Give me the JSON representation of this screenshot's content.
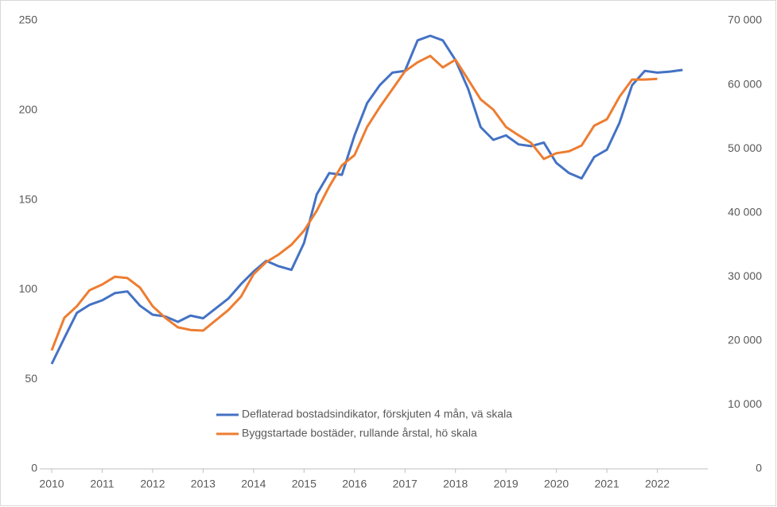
{
  "chart_data": {
    "type": "line",
    "x": [
      2010,
      2010.25,
      2010.5,
      2010.75,
      2011,
      2011.25,
      2011.5,
      2011.75,
      2012,
      2012.25,
      2012.5,
      2012.75,
      2013,
      2013.25,
      2013.5,
      2013.75,
      2014,
      2014.25,
      2014.5,
      2014.75,
      2015,
      2015.25,
      2015.5,
      2015.75,
      2016,
      2016.25,
      2016.5,
      2016.75,
      2017,
      2017.25,
      2017.5,
      2017.75,
      2018,
      2018.25,
      2018.5,
      2018.75,
      2019,
      2019.25,
      2019.5,
      2019.75,
      2020,
      2020.25,
      2020.5,
      2020.75,
      2021,
      2021.25,
      2021.5,
      2021.75,
      2022,
      2022.25,
      2022.5
    ],
    "xlim": [
      2010,
      2023
    ],
    "xticks": [
      2010,
      2011,
      2012,
      2013,
      2014,
      2015,
      2016,
      2017,
      2018,
      2019,
      2020,
      2021,
      2022
    ],
    "ylim": [
      0,
      250
    ],
    "yticks": [
      0,
      50,
      100,
      150,
      200,
      250
    ],
    "y2lim": [
      0,
      70000
    ],
    "y2ticks": [
      {
        "value": 0,
        "label": "0"
      },
      {
        "value": 10000,
        "label": "10 000"
      },
      {
        "value": 20000,
        "label": "20 000"
      },
      {
        "value": 30000,
        "label": "30 000"
      },
      {
        "value": 40000,
        "label": "40 000"
      },
      {
        "value": 50000,
        "label": "50 000"
      },
      {
        "value": 60000,
        "label": "60 000"
      },
      {
        "value": 70000,
        "label": "70 000"
      }
    ],
    "grid": false,
    "legend": "inside-bottom",
    "series": [
      {
        "name": "Deflaterad bostadsindikator, förskjuten 4 mån, vä skala",
        "color": "#4472c4",
        "axis": "y",
        "values": [
          58.5,
          73,
          87,
          91.5,
          94,
          98,
          99,
          91,
          86,
          85,
          82,
          85.5,
          84,
          89.5,
          95,
          103,
          110,
          116,
          113,
          111,
          126,
          153,
          165,
          164,
          186,
          204,
          214,
          221,
          222,
          239,
          241.6,
          239,
          228,
          212,
          190.6,
          183.5,
          186,
          181,
          180,
          182,
          170.6,
          165,
          162,
          174,
          178,
          193,
          214,
          222,
          221,
          221.6,
          222.5
        ]
      },
      {
        "name": "Byggstartade bostäder, rullande årstal, hö skala",
        "color": "#ed7d31",
        "axis": "y2",
        "values": [
          18500,
          23600,
          25400,
          27900,
          28800,
          30000,
          29800,
          28300,
          25400,
          23600,
          22100,
          21700,
          21600,
          23200,
          24800,
          26900,
          30400,
          32300,
          33500,
          35000,
          37200,
          40300,
          44100,
          47400,
          49000,
          53400,
          56500,
          59300,
          62100,
          63500,
          64500,
          62700,
          63900,
          60800,
          57700,
          56100,
          53400,
          52100,
          50900,
          48400,
          49300,
          49600,
          50500,
          53600,
          54600,
          58100,
          60800,
          60800,
          60900,
          null,
          null
        ]
      }
    ]
  }
}
